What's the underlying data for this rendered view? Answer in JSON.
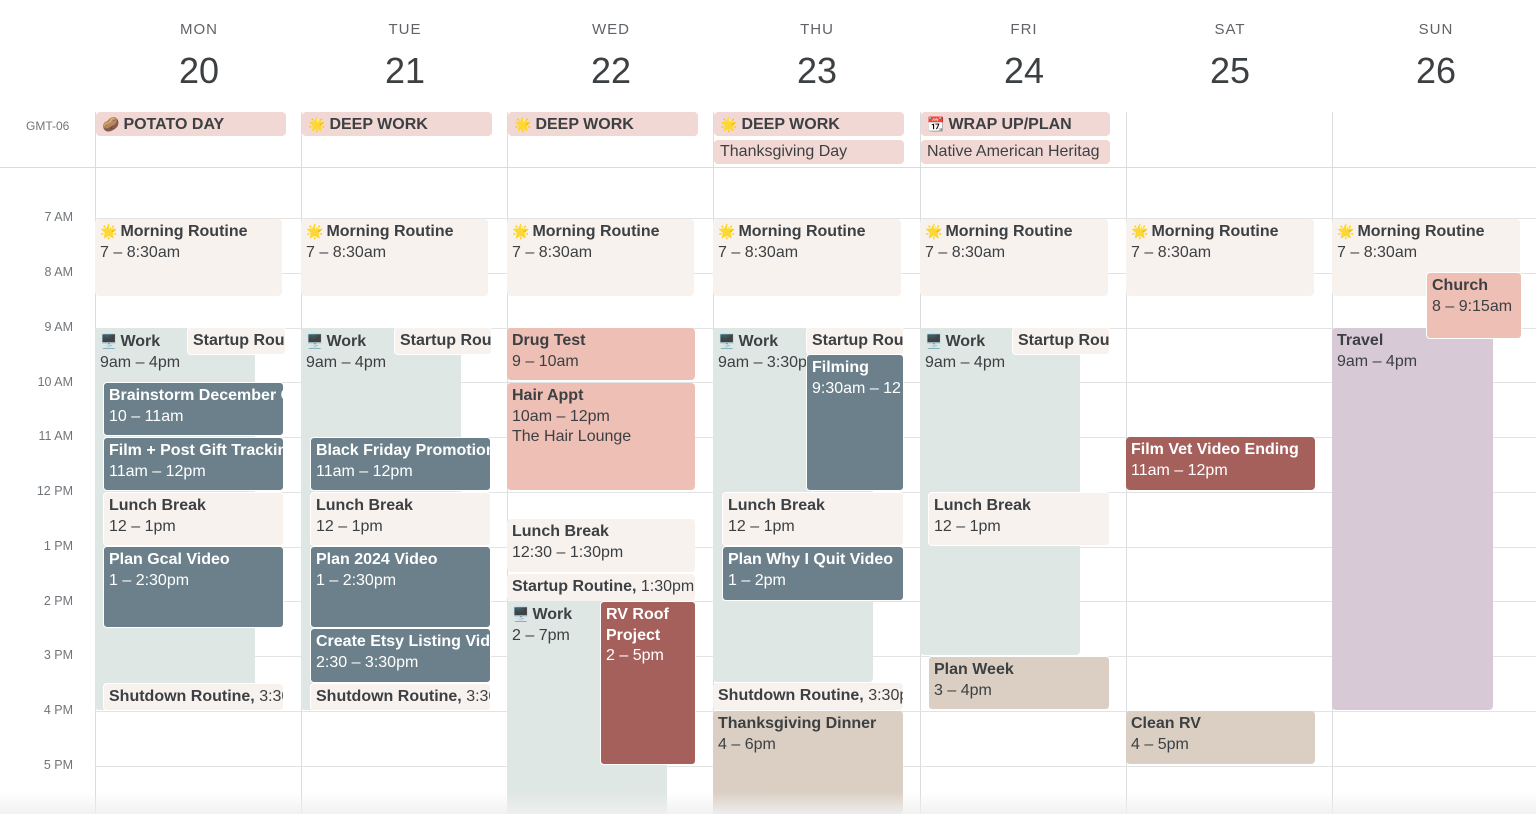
{
  "timezone": "GMT-06",
  "days": [
    {
      "dow": "MON",
      "num": "20"
    },
    {
      "dow": "TUE",
      "num": "21"
    },
    {
      "dow": "WED",
      "num": "22"
    },
    {
      "dow": "THU",
      "num": "23"
    },
    {
      "dow": "FRI",
      "num": "24"
    },
    {
      "dow": "SAT",
      "num": "25"
    },
    {
      "dow": "SUN",
      "num": "26"
    }
  ],
  "hours": [
    "7 AM",
    "8 AM",
    "9 AM",
    "10 AM",
    "11 AM",
    "12 PM",
    "1 PM",
    "2 PM",
    "3 PM",
    "4 PM",
    "5 PM"
  ],
  "colors": {
    "pink": "#f2d8d5",
    "cream": "#f8f2ef",
    "sage": "#dfe7e5",
    "slate": "#6b808b",
    "salmon": "#eebfb5",
    "brick": "#a5605c",
    "tan": "#dbcfc3",
    "lavender": "#d8c9d6"
  },
  "allday": {
    "potato_day": {
      "emoji": "🥔",
      "title": "POTATO DAY"
    },
    "deep_work_tue": {
      "emoji": "🌟",
      "title": "DEEP WORK"
    },
    "deep_work_wed": {
      "emoji": "🌟",
      "title": "DEEP WORK"
    },
    "deep_work_thu": {
      "emoji": "🌟",
      "title": "DEEP WORK"
    },
    "thanksgiving_day": {
      "title": "Thanksgiving Day"
    },
    "wrap_up": {
      "emoji": "📆",
      "title": "WRAP UP/PLAN"
    },
    "native_american": {
      "title": "Native American Heritag"
    }
  },
  "events": {
    "mon": {
      "morning": {
        "emoji": "🌟",
        "title": "Morning Routine",
        "time": "7 – 8:30am"
      },
      "work": {
        "emoji": "🖥️",
        "title": "Work",
        "time": "9am – 4pm"
      },
      "startup": {
        "title": "Startup Rou"
      },
      "brainstorm": {
        "title": "Brainstorm December C",
        "time": "10 – 11am"
      },
      "film_post": {
        "title": "Film + Post Gift Trackin",
        "time": "11am – 12pm"
      },
      "lunch": {
        "title": "Lunch Break",
        "time": "12 – 1pm"
      },
      "plan_gcal": {
        "title": "Plan Gcal Video",
        "time": "1 – 2:30pm"
      },
      "shutdown": {
        "title": "Shutdown Routine,",
        "time": "3:30"
      }
    },
    "tue": {
      "morning": {
        "emoji": "🌟",
        "title": "Morning Routine",
        "time": "7 – 8:30am"
      },
      "work": {
        "emoji": "🖥️",
        "title": "Work",
        "time": "9am – 4pm"
      },
      "startup": {
        "title": "Startup Rou"
      },
      "black_friday": {
        "title": "Black Friday Promotion",
        "time": "11am – 12pm"
      },
      "lunch": {
        "title": "Lunch Break",
        "time": "12 – 1pm"
      },
      "plan_2024": {
        "title": "Plan 2024 Video",
        "time": "1 – 2:30pm"
      },
      "etsy": {
        "title": "Create Etsy Listing Vide",
        "time": "2:30 – 3:30pm"
      },
      "shutdown": {
        "title": "Shutdown Routine,",
        "time": "3:30"
      }
    },
    "wed": {
      "morning": {
        "emoji": "🌟",
        "title": "Morning Routine",
        "time": "7 – 8:30am"
      },
      "drug_test": {
        "title": "Drug Test",
        "time": "9 – 10am"
      },
      "hair": {
        "title": "Hair Appt",
        "time": "10am – 12pm",
        "location": "The Hair Lounge"
      },
      "lunch": {
        "title": "Lunch Break",
        "time": "12:30 – 1:30pm"
      },
      "startup": {
        "title": "Startup Routine,",
        "time": "1:30pm"
      },
      "work": {
        "emoji": "🖥️",
        "title": "Work",
        "time": "2 – 7pm"
      },
      "rv_roof": {
        "title": "RV Roof Project",
        "time": "2 – 5pm"
      }
    },
    "thu": {
      "morning": {
        "emoji": "🌟",
        "title": "Morning Routine",
        "time": "7 – 8:30am"
      },
      "work": {
        "emoji": "🖥️",
        "title": "Work",
        "time": "9am – 3:30p"
      },
      "startup": {
        "title": "Startup Rou"
      },
      "filming": {
        "title": "Filming",
        "time": "9:30am – 12"
      },
      "lunch": {
        "title": "Lunch Break",
        "time": "12 – 1pm"
      },
      "plan_quit": {
        "title": "Plan Why I Quit Video",
        "time": "1 – 2pm"
      },
      "shutdown": {
        "title": "Shutdown Routine,",
        "time": "3:30p"
      },
      "dinner": {
        "title": "Thanksgiving Dinner",
        "time": "4 – 6pm"
      }
    },
    "fri": {
      "morning": {
        "emoji": "🌟",
        "title": "Morning Routine",
        "time": "7 – 8:30am"
      },
      "work": {
        "emoji": "🖥️",
        "title": "Work",
        "time": "9am – 4pm"
      },
      "startup": {
        "title": "Startup Rou"
      },
      "lunch": {
        "title": "Lunch Break",
        "time": "12 – 1pm"
      },
      "plan_week": {
        "title": "Plan Week",
        "time": "3 – 4pm"
      }
    },
    "sat": {
      "morning": {
        "emoji": "🌟",
        "title": "Morning Routine",
        "time": "7 – 8:30am"
      },
      "film_vet": {
        "title": "Film Vet Video Ending",
        "time": "11am – 12pm"
      },
      "clean_rv": {
        "title": "Clean RV",
        "time": "4 – 5pm"
      }
    },
    "sun": {
      "morning": {
        "emoji": "🌟",
        "title": "Morning Routine",
        "time": "7 – 8:30am"
      },
      "church": {
        "title": "Church",
        "time": "8 – 9:15am"
      },
      "travel": {
        "title": "Travel",
        "time": "9am – 4pm"
      }
    }
  }
}
